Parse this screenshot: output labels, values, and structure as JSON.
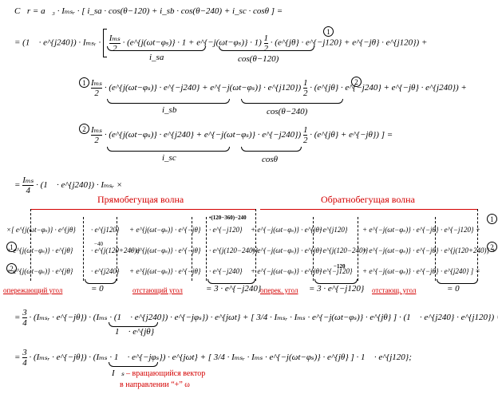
{
  "eq1": {
    "lhs": "C⃗r = a⃗₃ · Iₘₛᵣ · [",
    "rhs": "i_sa · cos(θ−120) + i_sb · cos(θ−240) + i_sc · cosθ ] ="
  },
  "row_a": {
    "prefix": "= (1⃗ · e^{j240}) · Iₘₛᵣ ·",
    "num": "Iₘₛ",
    "den": "2",
    "body": "· (e^{j(ωt−φₛ)} · 1 + e^{−j(ωt−φₛ)} · 1)",
    "half": "1",
    "half_den": "2",
    "cos": "· (e^{jθ} · e^{−j120} + e^{−jθ} · e^{j120}) +",
    "under1": "i_sa",
    "under2": "cos(θ−120)",
    "mark": "1"
  },
  "row_b": {
    "mark_l": "1",
    "num": "Iₘₛ",
    "den": "2",
    "body": "· (e^{j(ωt−φₛ)} · e^{−j240} + e^{−j(ωt−φₛ)} · e^{j120})",
    "half": "1",
    "half_den": "2",
    "cos": "· (e^{jθ} · e^{−j240} + e^{−jθ} · e^{j240}) +",
    "under1": "i_sb",
    "under2": "cos(θ−240)",
    "mark_r": "2"
  },
  "row_c": {
    "mark_l": "2",
    "num": "Iₘₛ",
    "den": "2",
    "body": "· (e^{j(ωt−φₛ)} · e^{j240} + e^{−j(ωt−φₛ)} · e^{−j240})",
    "half": "1",
    "half_den": "2",
    "cos": "· (e^{jθ} + e^{−jθ}) ] =",
    "under1": "i_sc",
    "under2": "cosθ"
  },
  "row_d": {
    "prefix": "=",
    "num": "Iₘₛ",
    "den": "4",
    "body": "· (1⃗ · e^{j240}) · Iₘₛᵣ ×"
  },
  "waves": {
    "forward": "Прямобегущая волна",
    "backward": "Обратнобегущая волна"
  },
  "matrix": {
    "r1": [
      "×[ e^{j(ωt−φₛ)} · e^{jθ}",
      "· e^{j120}",
      "+ e^{j(ωt−φₛ)} · e^{−jθ}",
      "· e^{−j120}",
      "+ e^{−j(ωt−φₛ)} · e^{jθ}",
      "· e^{j120}",
      "+ e^{−j(ωt−φₛ)} · e^{−jθ}",
      "· e^{−j120} +"
    ],
    "r2": [
      "+ e^{j(ωt−φₛ)} · e^{jθ}",
      "· e^{j(120+240)}",
      "+ e^{j(ωt−φₛ)} · e^{−jθ}",
      "· e^{j(120−240)}",
      "+ e^{−j(ωt−φₛ)} · e^{jθ}",
      "· e^{j(120−240)}",
      "+ e^{−j(ωt−φₛ)} · e^{−jθ}",
      "· e^{j(120+240)} +"
    ],
    "r3": [
      "+ e^{j(ωt−φₛ)} · e^{jθ}",
      "· e^{j240}",
      "+ e^{j(ωt−φₛ)} · e^{−jθ}",
      "· e^{−j240}",
      "+ e^{−j(ωt−φₛ)} · e^{jθ}",
      "· e^{−j120}",
      "+ e^{−j(ωt−φₛ)} · e^{−jθ}",
      "· e^{j240} ] ="
    ],
    "small_top": "•(120−360)−240",
    "small_mid": "−40",
    "small_mid2": "−120",
    "results": [
      "= 0",
      "= 3 · e^{−j240}",
      "= 3 · e^{−j120}",
      "= 0"
    ],
    "labels": [
      "опережающий угол",
      "отстающий угол",
      "оперек. угол",
      "отстающ. угол"
    ],
    "marks": [
      "1",
      "1",
      "2",
      "2"
    ]
  },
  "eq_e": {
    "prefix": "=",
    "frac_num": "3",
    "frac_den": "4",
    "body": "· (Iₘₛᵣ · e^{−jθ}) · (Iₘₛ · (1⃗ · e^{j240}) · e^{−jφₛ}) · e^{jωt} +",
    "under": "1⃗ · e^{jθ}",
    "tail": "[ 3/4 · Iₘₛᵣ · Iₘₛ · e^{−j(ωt−φₛ)} · e^{jθ} ] · (1⃗ · e^{j240} · e^{j120}) ="
  },
  "eq_f": {
    "prefix": "=",
    "frac_num": "3",
    "frac_den": "4",
    "body": "· (Iₘₛᵣ · e^{−jθ}) · (Iₘₛ · 1⃗ · e^{−jφₛ}) · e^{jωt} +",
    "tail": "[ 3/4 · Iₘₛᵣ · Iₘₛ · e^{−j(ωt−φₛ)} · e^{jθ} ] · 1⃗ · e^{j120};"
  },
  "note": {
    "vec": "I⃗ₛ",
    "line1": "– вращающийся вектор",
    "line2": "в направлении “+” ω"
  }
}
